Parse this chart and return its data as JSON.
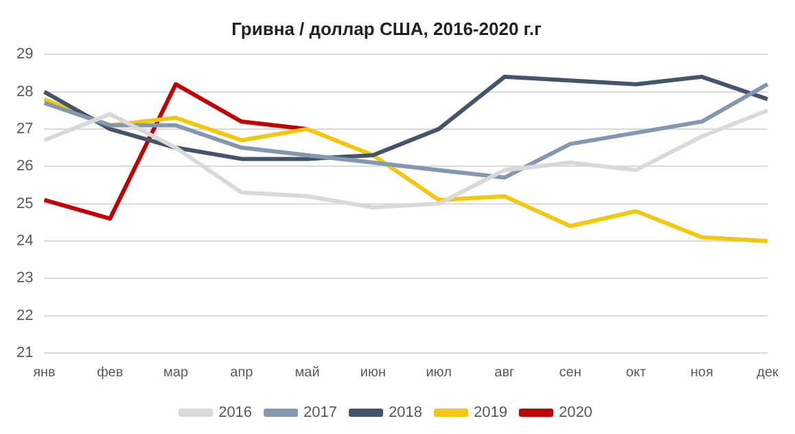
{
  "chart_data": {
    "type": "line",
    "title": "Гривна / доллар США, 2016-2020 г.г",
    "categories": [
      "янв",
      "фев",
      "мар",
      "апр",
      "май",
      "июн",
      "июл",
      "авг",
      "сен",
      "окт",
      "ноя",
      "дек"
    ],
    "series": [
      {
        "name": "2016",
        "color": "#d9d9d9",
        "values": [
          26.7,
          27.4,
          26.5,
          25.3,
          25.2,
          24.9,
          25.0,
          25.9,
          26.1,
          25.9,
          26.8,
          27.5
        ]
      },
      {
        "name": "2017",
        "color": "#8497b0",
        "values": [
          27.7,
          27.1,
          27.1,
          26.5,
          26.3,
          26.1,
          25.9,
          25.7,
          26.6,
          26.9,
          27.2,
          28.2
        ]
      },
      {
        "name": "2018",
        "color": "#44546a",
        "values": [
          28.0,
          27.0,
          26.5,
          26.2,
          26.2,
          26.3,
          27.0,
          28.4,
          28.3,
          28.2,
          28.4,
          27.8
        ]
      },
      {
        "name": "2019",
        "color": "#f2c80f",
        "values": [
          27.8,
          27.1,
          27.3,
          26.7,
          27.0,
          26.3,
          25.1,
          25.2,
          24.4,
          24.8,
          24.1,
          24.0
        ]
      },
      {
        "name": "2020",
        "color": "#c00000",
        "values": [
          25.1,
          24.6,
          28.2,
          27.2,
          27.0,
          null,
          null,
          null,
          null,
          null,
          null,
          null
        ]
      }
    ],
    "ylim": [
      21,
      29
    ],
    "yticks": [
      21,
      22,
      23,
      24,
      25,
      26,
      27,
      28,
      29
    ],
    "grid": "y",
    "legend": "bottom",
    "marker": "none",
    "line_style": "solid"
  }
}
